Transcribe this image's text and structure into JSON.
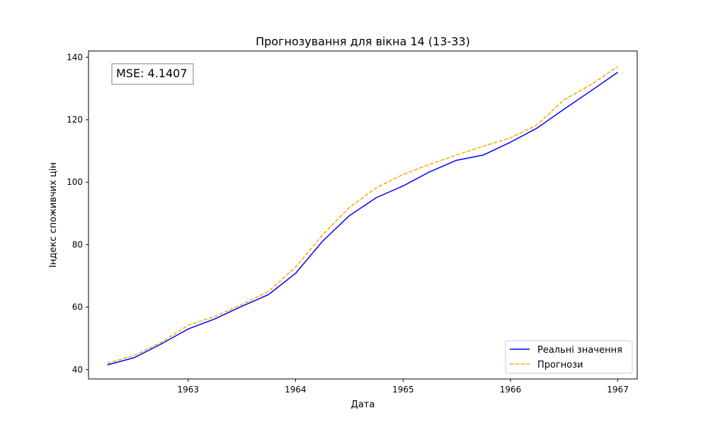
{
  "chart_data": {
    "type": "line",
    "title": "Прогнозування для вікна 14 (13-33)",
    "xlabel": "Дата",
    "ylabel": "Індекс споживчих цін",
    "x": [
      "1962-04-01",
      "1962-07-01",
      "1962-10-01",
      "1963-01-01",
      "1963-04-01",
      "1963-07-01",
      "1963-10-01",
      "1964-01-01",
      "1964-04-01",
      "1964-07-01",
      "1964-10-01",
      "1965-01-01",
      "1965-04-01",
      "1965-07-01",
      "1965-10-01",
      "1966-01-01",
      "1966-04-01",
      "1966-07-01",
      "1966-10-01",
      "1967-01-01"
    ],
    "x_ticks": [
      "1963",
      "1964",
      "1965",
      "1966",
      "1967"
    ],
    "x_tick_dates": [
      "1963-01-01",
      "1964-01-01",
      "1965-01-01",
      "1966-01-01",
      "1967-01-01"
    ],
    "xlim": [
      "1962-01-27",
      "1967-03-08"
    ],
    "ylim": [
      37,
      142
    ],
    "y_ticks": [
      40,
      60,
      80,
      100,
      120,
      140
    ],
    "grid": false,
    "legend_position": "bottom-right",
    "annotation": "MSE: 4.1407",
    "series": [
      {
        "name": "Реальні значення",
        "color": "#0000ff",
        "style": "solid",
        "values": [
          41.5,
          43.8,
          48.2,
          53.0,
          56.2,
          60.2,
          64.0,
          70.8,
          81.0,
          89.2,
          95.0,
          98.8,
          103.3,
          107.0,
          108.7,
          112.8,
          117.3,
          123.3,
          129.2,
          135.2
        ]
      },
      {
        "name": "Прогнози",
        "color": "#ffa500",
        "style": "dashed",
        "values": [
          42.0,
          44.5,
          48.7,
          54.2,
          57.0,
          60.8,
          65.0,
          72.8,
          83.0,
          91.8,
          98.2,
          102.5,
          105.7,
          108.7,
          111.5,
          114.2,
          118.3,
          126.3,
          131.2,
          137.0
        ]
      }
    ]
  }
}
